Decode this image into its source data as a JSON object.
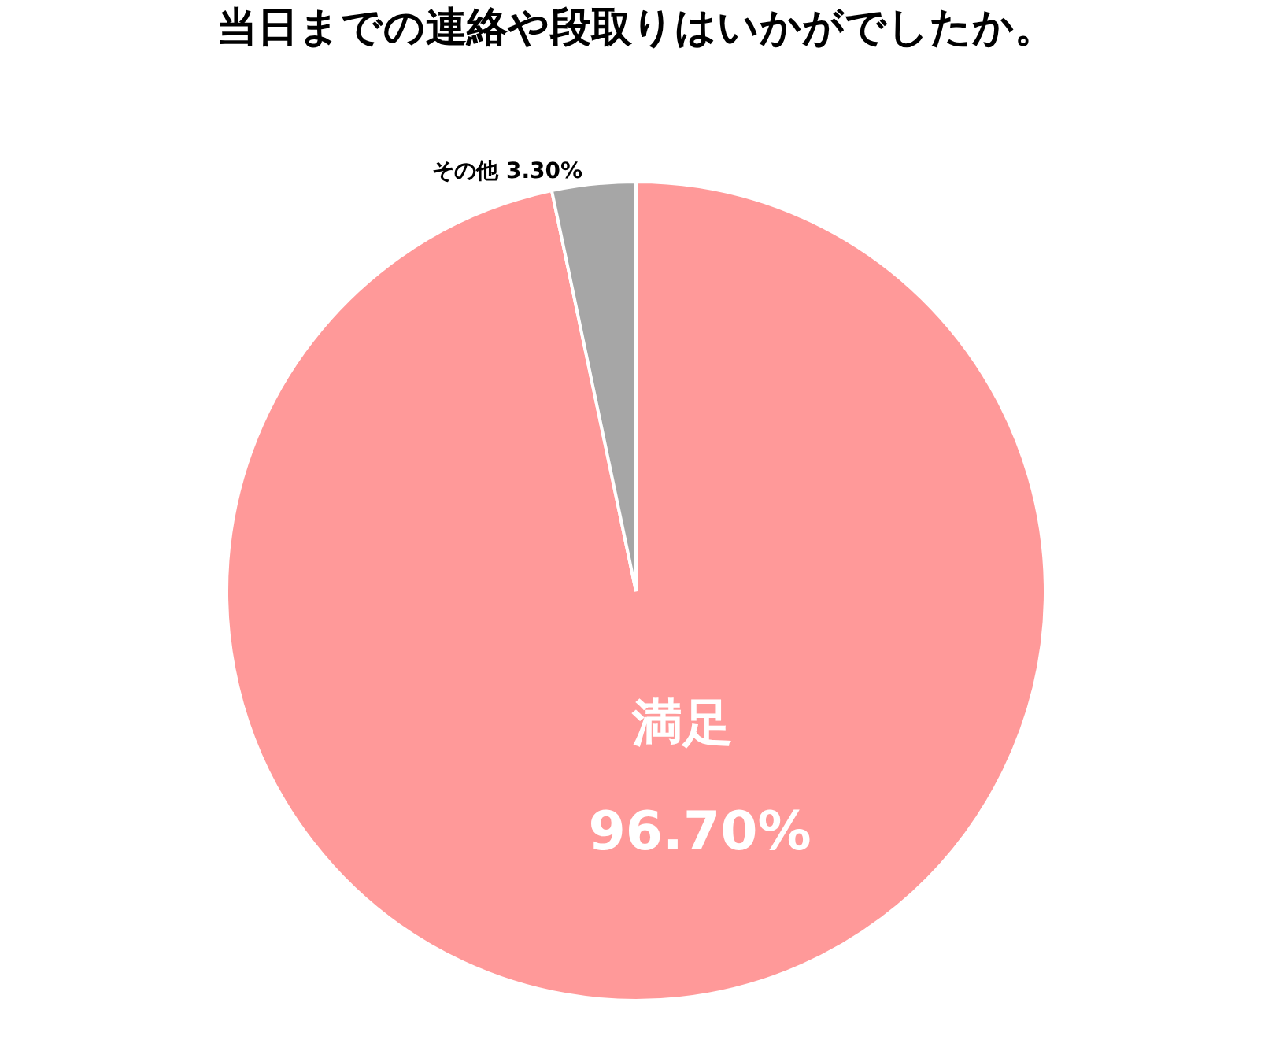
{
  "chart_data": {
    "type": "pie",
    "title": "当日までの連絡や段取りはいかがでしたか。",
    "categories": [
      "満足",
      "その他"
    ],
    "values": [
      96.7,
      3.3
    ],
    "colors": [
      "#ff9999",
      "#a6a6a6"
    ],
    "value_labels": [
      "96.70%",
      "3.30%"
    ],
    "legend": false
  }
}
